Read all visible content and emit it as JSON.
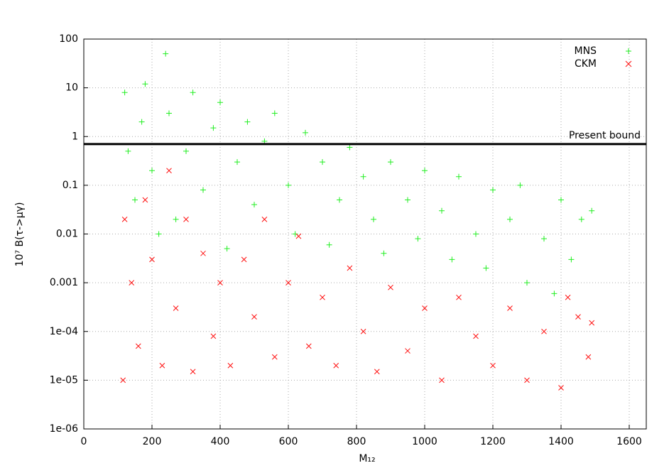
{
  "chart_data": {
    "type": "scatter",
    "xlabel": "M₁₂",
    "ylabel": "10⁷ B(τ->μγ)",
    "xlim": [
      0,
      1650
    ],
    "xticks": [
      0,
      200,
      400,
      600,
      800,
      1000,
      1200,
      1400,
      1600
    ],
    "ylim": [
      1e-06,
      100
    ],
    "yscale": "log",
    "yticks": [
      {
        "value": 1e-06,
        "label": "1e-06"
      },
      {
        "value": 1e-05,
        "label": "1e-05"
      },
      {
        "value": 0.0001,
        "label": "1e-04"
      },
      0.001,
      0.01,
      0.1,
      1,
      10,
      100
    ],
    "grid": true,
    "legend": "upper right",
    "bound": {
      "label": "Present bound",
      "value": 0.7
    },
    "series": [
      {
        "name": "MNS",
        "color": "#22ee22",
        "marker": "plus",
        "x": [
          120,
          130,
          150,
          170,
          180,
          200,
          220,
          240,
          250,
          270,
          300,
          320,
          350,
          380,
          400,
          420,
          450,
          480,
          500,
          530,
          560,
          600,
          620,
          650,
          700,
          720,
          750,
          780,
          820,
          850,
          880,
          900,
          950,
          980,
          1000,
          1050,
          1080,
          1100,
          1150,
          1180,
          1200,
          1250,
          1280,
          1300,
          1350,
          1380,
          1400,
          1430,
          1460,
          1490
        ],
        "values": [
          8,
          0.5,
          0.05,
          2,
          12,
          0.2,
          0.01,
          50,
          3,
          0.02,
          0.5,
          8,
          0.08,
          1.5,
          5,
          0.005,
          0.3,
          2,
          0.04,
          0.8,
          3,
          0.1,
          0.01,
          1.2,
          0.3,
          0.006,
          0.05,
          0.6,
          0.15,
          0.02,
          0.004,
          0.3,
          0.05,
          0.008,
          0.2,
          0.03,
          0.003,
          0.15,
          0.01,
          0.002,
          0.08,
          0.02,
          0.1,
          0.001,
          0.008,
          0.0006,
          0.05,
          0.003,
          0.02,
          0.03
        ]
      },
      {
        "name": "CKM",
        "color": "#ff1111",
        "marker": "cross",
        "x": [
          115,
          120,
          140,
          160,
          180,
          200,
          230,
          250,
          270,
          300,
          320,
          350,
          380,
          400,
          430,
          470,
          500,
          530,
          560,
          600,
          630,
          660,
          700,
          740,
          780,
          820,
          860,
          900,
          950,
          1000,
          1050,
          1100,
          1150,
          1200,
          1250,
          1300,
          1350,
          1400,
          1420,
          1450,
          1480,
          1490
        ],
        "values": [
          1e-05,
          0.02,
          0.001,
          5e-05,
          0.05,
          0.003,
          2e-05,
          0.2,
          0.0003,
          0.02,
          1.5e-05,
          0.004,
          8e-05,
          0.001,
          2e-05,
          0.003,
          0.0002,
          0.02,
          3e-05,
          0.001,
          0.009,
          5e-05,
          0.0005,
          2e-05,
          0.002,
          0.0001,
          1.5e-05,
          0.0008,
          4e-05,
          0.0003,
          1e-05,
          0.0005,
          8e-05,
          2e-05,
          0.0003,
          1e-05,
          0.0001,
          7e-06,
          0.0005,
          0.0002,
          3e-05,
          0.00015
        ]
      }
    ]
  }
}
